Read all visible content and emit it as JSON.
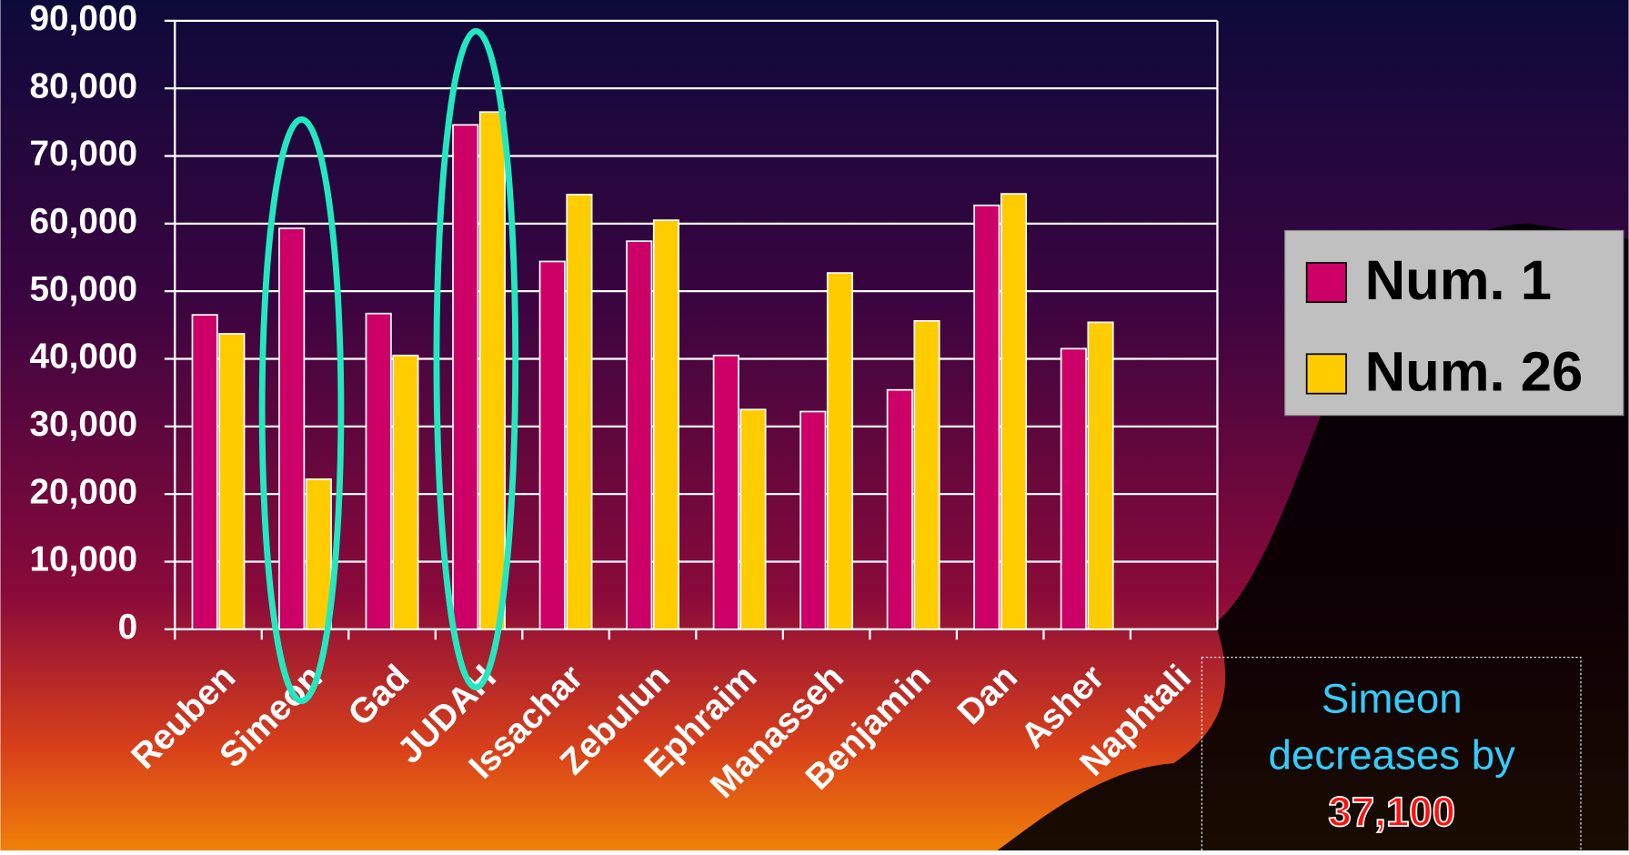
{
  "chart_data": {
    "type": "bar",
    "categories": [
      "Reuben",
      "Simeon",
      "Gad",
      "JUDAH",
      "Issachar",
      "Zebulun",
      "Ephraim",
      "Manasseh",
      "Benjamin",
      "Dan",
      "Asher",
      "Naphtali"
    ],
    "series": [
      {
        "name": "Num. 1",
        "color": "#cc0066",
        "values": [
          46500,
          59300,
          46700,
          74600,
          54400,
          57400,
          40500,
          32200,
          35400,
          62700,
          41500,
          null
        ]
      },
      {
        "name": "Num. 26",
        "color": "#ffcc00",
        "values": [
          43700,
          22200,
          40500,
          76500,
          64300,
          60500,
          32500,
          52700,
          45600,
          64400,
          45400,
          null
        ]
      }
    ],
    "ylim": [
      0,
      90000
    ],
    "yticks": [
      0,
      {
        "value": 10000,
        "label": "10,000"
      },
      {
        "value": 20000,
        "label": "20,000"
      },
      {
        "value": 30000,
        "label": "30,000"
      },
      {
        "value": 40000,
        "label": "40,000"
      },
      {
        "value": 50000,
        "label": "50,000"
      },
      {
        "value": 60000,
        "label": "60,000"
      },
      {
        "value": 70000,
        "label": "70,000"
      },
      {
        "value": 80000,
        "label": "80,000"
      },
      {
        "value": 90000,
        "label": "90,000"
      }
    ],
    "grid": true,
    "legend": "right",
    "annotations": [
      "Simeon decreases by",
      "37,100"
    ]
  }
}
